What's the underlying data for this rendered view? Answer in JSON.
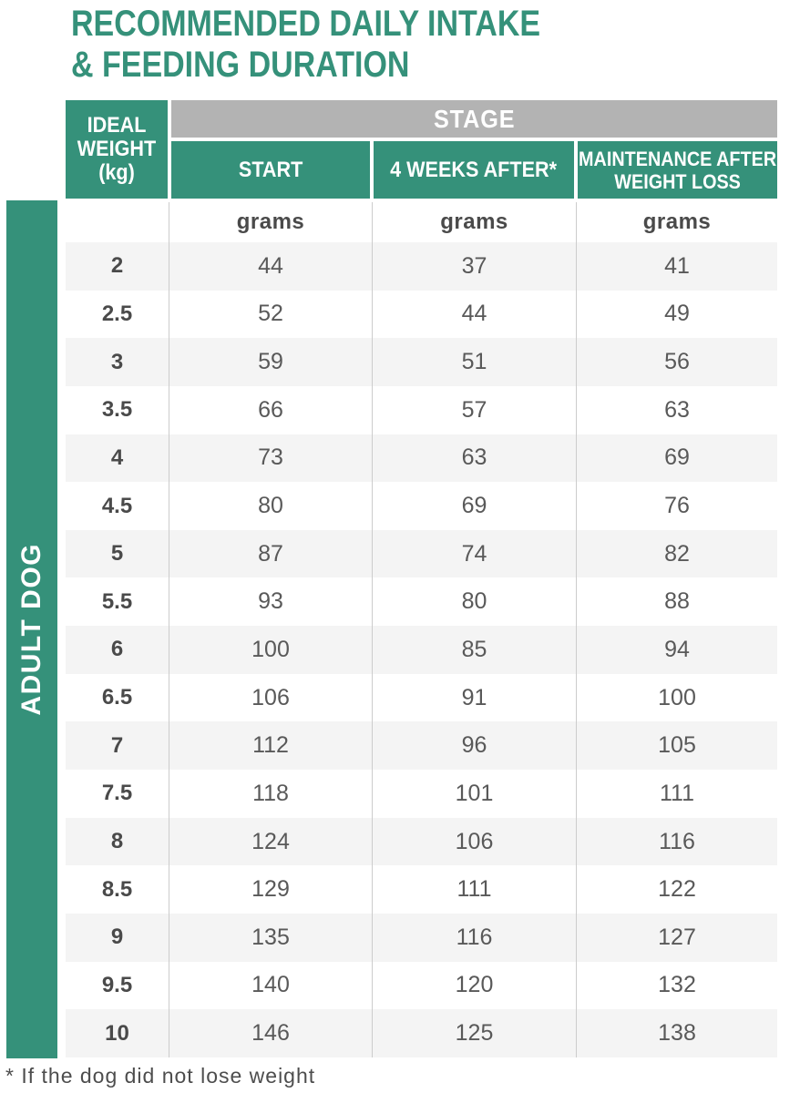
{
  "title": {
    "line1": "RECOMMENDED DAILY INTAKE",
    "line2": "& FEEDING DURATION"
  },
  "side_label": "ADULT DOG",
  "table": {
    "corner_lines": [
      "IDEAL",
      "WEIGHT",
      "(kg)"
    ],
    "stage_label": "STAGE",
    "col_start": "START",
    "col_weeks": "4 WEEKS AFTER*",
    "col_maintenance_lines": [
      "MAINTENANCE AFTER",
      "WEIGHT LOSS"
    ],
    "unit": "grams",
    "rows": [
      {
        "weight": "2",
        "start": "44",
        "weeks": "37",
        "maint": "41"
      },
      {
        "weight": "2.5",
        "start": "52",
        "weeks": "44",
        "maint": "49"
      },
      {
        "weight": "3",
        "start": "59",
        "weeks": "51",
        "maint": "56"
      },
      {
        "weight": "3.5",
        "start": "66",
        "weeks": "57",
        "maint": "63"
      },
      {
        "weight": "4",
        "start": "73",
        "weeks": "63",
        "maint": "69"
      },
      {
        "weight": "4.5",
        "start": "80",
        "weeks": "69",
        "maint": "76"
      },
      {
        "weight": "5",
        "start": "87",
        "weeks": "74",
        "maint": "82"
      },
      {
        "weight": "5.5",
        "start": "93",
        "weeks": "80",
        "maint": "88"
      },
      {
        "weight": "6",
        "start": "100",
        "weeks": "85",
        "maint": "94"
      },
      {
        "weight": "6.5",
        "start": "106",
        "weeks": "91",
        "maint": "100"
      },
      {
        "weight": "7",
        "start": "112",
        "weeks": "96",
        "maint": "105"
      },
      {
        "weight": "7.5",
        "start": "118",
        "weeks": "101",
        "maint": "111"
      },
      {
        "weight": "8",
        "start": "124",
        "weeks": "106",
        "maint": "116"
      },
      {
        "weight": "8.5",
        "start": "129",
        "weeks": "111",
        "maint": "122"
      },
      {
        "weight": "9",
        "start": "135",
        "weeks": "116",
        "maint": "127"
      },
      {
        "weight": "9.5",
        "start": "140",
        "weeks": "120",
        "maint": "132"
      },
      {
        "weight": "10",
        "start": "146",
        "weeks": "125",
        "maint": "138"
      }
    ]
  },
  "footnote": "* If the dog did not lose weight",
  "colors": {
    "green": "#35917A",
    "header_gray": "#B3B3B3",
    "row_alt": "#F4F4F4",
    "separator": "#CCCCCC",
    "data_text": "#595959",
    "strong_text": "#4A4A4A",
    "footnote_text": "#4D4D4D"
  }
}
